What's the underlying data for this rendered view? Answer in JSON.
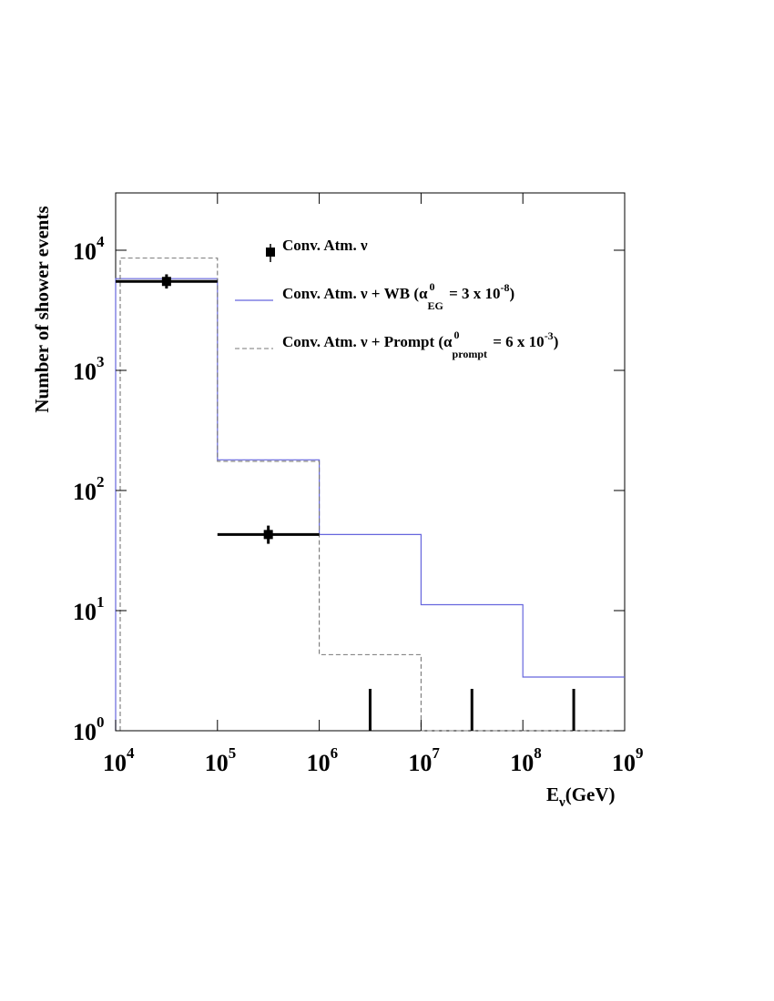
{
  "chart_data": {
    "type": "histogram",
    "xlabel": {
      "main": "E",
      "sub": "ν",
      "rest": "(GeV)"
    },
    "ylabel": "Number of shower events",
    "x_scale": "log",
    "y_scale": "log",
    "xlim": [
      10000,
      1000000000
    ],
    "ylim": [
      1,
      30000
    ],
    "x_ticks": [
      {
        "base": "10",
        "exp": "4"
      },
      {
        "base": "10",
        "exp": "5"
      },
      {
        "base": "10",
        "exp": "6"
      },
      {
        "base": "10",
        "exp": "7"
      },
      {
        "base": "10",
        "exp": "8"
      },
      {
        "base": "10",
        "exp": "9"
      }
    ],
    "y_ticks": [
      {
        "base": "10",
        "exp": "0"
      },
      {
        "base": "10",
        "exp": "1"
      },
      {
        "base": "10",
        "exp": "2"
      },
      {
        "base": "10",
        "exp": "3"
      },
      {
        "base": "10",
        "exp": "4"
      }
    ],
    "bin_edges": [
      10000,
      100000,
      1000000,
      10000000,
      100000000,
      1000000000
    ],
    "series": [
      {
        "name": "Conv. Atm. ν",
        "style": "points-with-errorbars",
        "color": "#000000",
        "points": [
          {
            "x": 31600,
            "y": 5500,
            "xlo": 10000,
            "xhi": 100000,
            "ylo": 4800,
            "yhi": 6300
          },
          {
            "x": 316000,
            "y": 43,
            "xlo": 100000,
            "xhi": 1000000,
            "ylo": 36,
            "yhi": 51
          }
        ],
        "upper_limit_x": [
          3160000,
          31600000,
          316000000
        ]
      },
      {
        "name": "Conv. Atm. ν + WB (α⁰_EG = 3 x 10⁻⁸)",
        "style": "solid",
        "color": "#6666dd",
        "values": [
          5800,
          180,
          43,
          11.2,
          2.8
        ]
      },
      {
        "name": "Conv. Atm. ν + Prompt (α⁰_prompt = 6 x 10⁻³)",
        "style": "dashed",
        "color": "#777777",
        "values": [
          8600,
          175,
          4.3,
          1.0,
          1.0
        ]
      }
    ],
    "legend": {
      "placement": "top-right",
      "entries": [
        {
          "pre": "Conv. Atm. ν"
        },
        {
          "pre": "Conv. Atm. ν + WB (α",
          "sup": "0",
          "sub": "EG",
          "post": " = 3 x 10",
          "post_sup": "-8",
          "end": ")"
        },
        {
          "pre": "Conv. Atm. ν + Prompt (α",
          "sup": "0",
          "sub": "prompt",
          "post": " =  6 x 10",
          "post_sup": "-3",
          "end": ")"
        }
      ]
    }
  }
}
